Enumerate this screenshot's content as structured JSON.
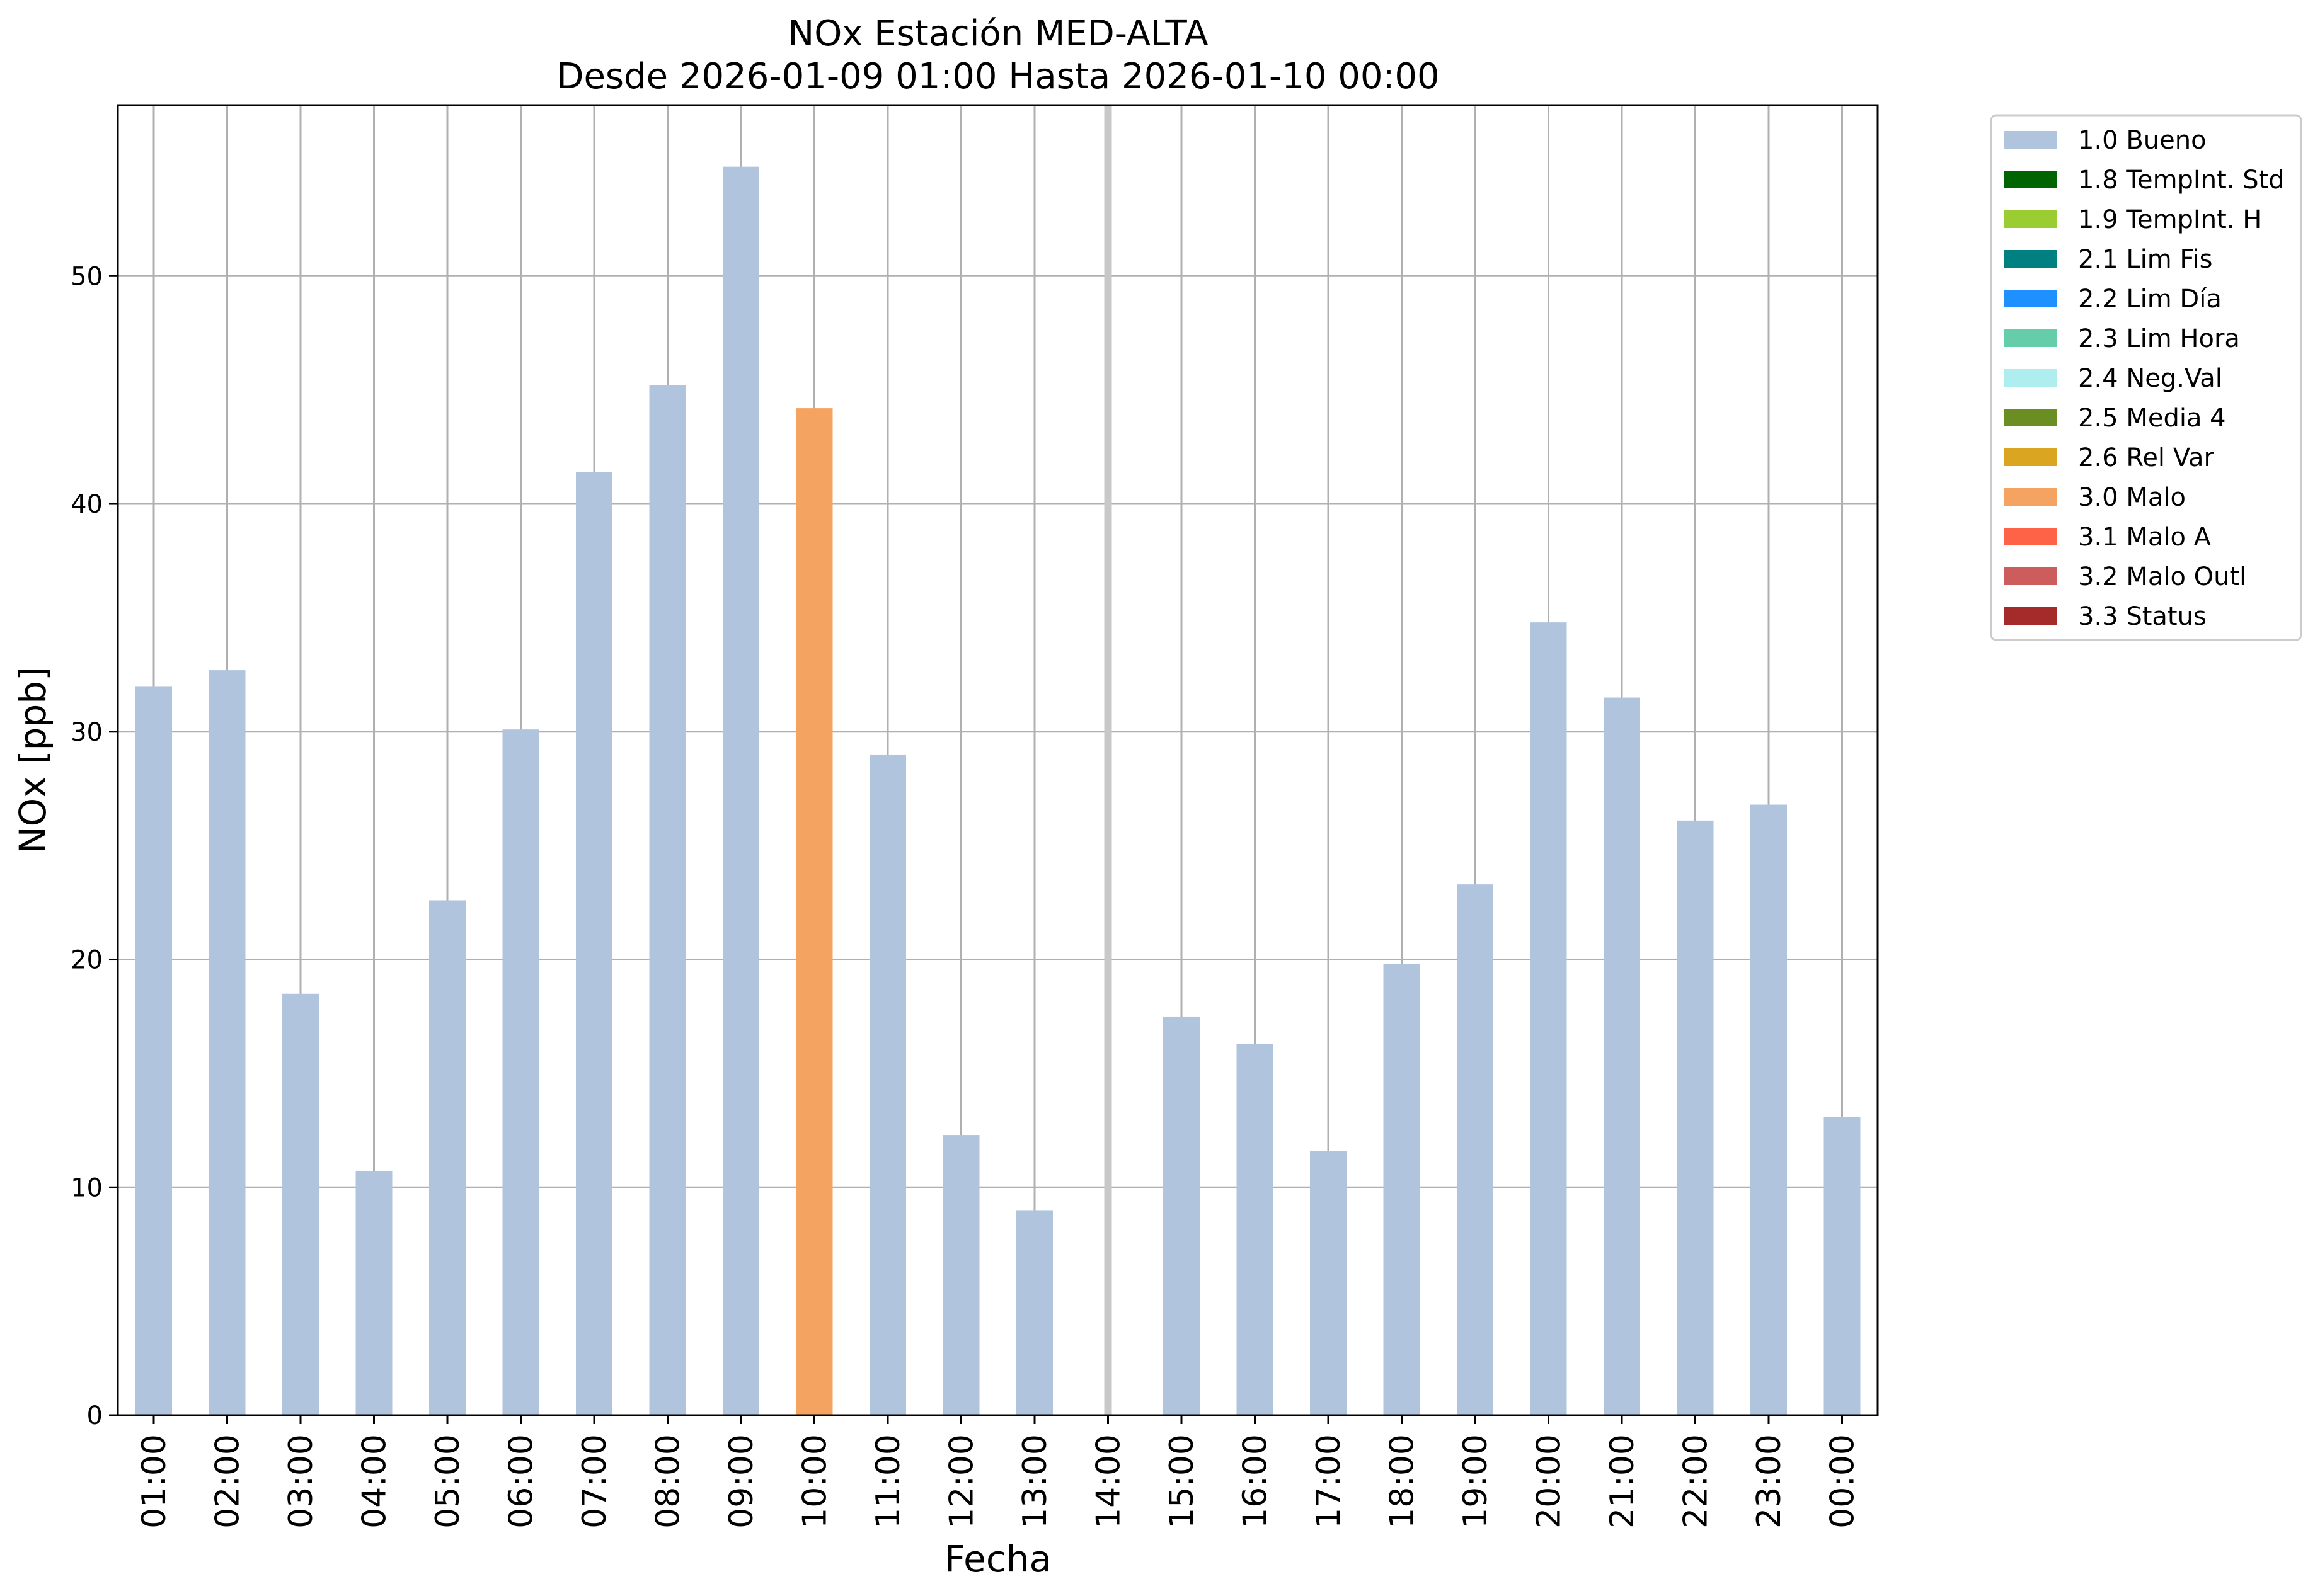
{
  "chart_data": {
    "type": "bar",
    "title": "NOx Estación MED-ALTA",
    "subtitle": "Desde 2026-01-09 01:00 Hasta 2026-01-10 00:00",
    "xlabel": "Fecha",
    "ylabel": "NOx [ppb]",
    "ylim": [
      0,
      57.5
    ],
    "yticks": [
      0,
      10,
      20,
      30,
      40,
      50
    ],
    "grid": true,
    "legend_position": "outside-top-right",
    "categories": [
      "01:00",
      "02:00",
      "03:00",
      "04:00",
      "05:00",
      "06:00",
      "07:00",
      "08:00",
      "09:00",
      "10:00",
      "11:00",
      "12:00",
      "13:00",
      "14:00",
      "15:00",
      "16:00",
      "17:00",
      "18:00",
      "19:00",
      "20:00",
      "21:00",
      "22:00",
      "23:00",
      "00:00"
    ],
    "values": [
      32.0,
      32.7,
      18.5,
      10.7,
      22.6,
      30.1,
      41.4,
      45.2,
      54.8,
      44.2,
      29.0,
      12.3,
      9.0,
      null,
      17.5,
      16.3,
      11.6,
      19.8,
      23.3,
      34.8,
      31.5,
      26.1,
      26.8,
      13.1
    ],
    "flags": [
      "1.0 Bueno",
      "1.0 Bueno",
      "1.0 Bueno",
      "1.0 Bueno",
      "1.0 Bueno",
      "1.0 Bueno",
      "1.0 Bueno",
      "1.0 Bueno",
      "1.0 Bueno",
      "3.0 Malo",
      "1.0 Bueno",
      "1.0 Bueno",
      "1.0 Bueno",
      null,
      "1.0 Bueno",
      "1.0 Bueno",
      "1.0 Bueno",
      "1.0 Bueno",
      "1.0 Bueno",
      "1.0 Bueno",
      "1.0 Bueno",
      "1.0 Bueno",
      "1.0 Bueno",
      "1.0 Bueno"
    ],
    "missing_marker_category": "14:00",
    "legend": [
      {
        "label": "1.0 Bueno",
        "color": "#b0c4de"
      },
      {
        "label": "1.8 TempInt. Std",
        "color": "#006400"
      },
      {
        "label": "1.9 TempInt. H",
        "color": "#9acd32"
      },
      {
        "label": "2.1 Lim Fis",
        "color": "#008080"
      },
      {
        "label": "2.2 Lim Día",
        "color": "#1e90ff"
      },
      {
        "label": "2.3 Lim Hora",
        "color": "#66cdaa"
      },
      {
        "label": "2.4 Neg.Val",
        "color": "#afeeee"
      },
      {
        "label": "2.5 Media 4",
        "color": "#6b8e23"
      },
      {
        "label": "2.6 Rel Var",
        "color": "#daa520"
      },
      {
        "label": "3.0 Malo",
        "color": "#f4a460"
      },
      {
        "label": "3.1 Malo A",
        "color": "#ff6347"
      },
      {
        "label": "3.2 Malo Outl",
        "color": "#cd5c5c"
      },
      {
        "label": "3.3 Status",
        "color": "#a52a2a"
      }
    ]
  }
}
